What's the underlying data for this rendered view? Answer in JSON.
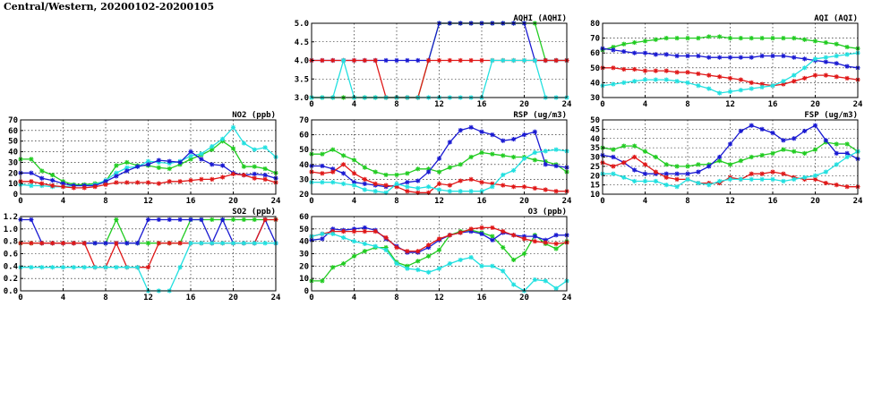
{
  "page": {
    "title": "Central/Western, 20200102-20200105"
  },
  "colors": {
    "green": "#22cc22",
    "blue": "#1a1ad2",
    "red": "#e01818",
    "cyan": "#22e0e0"
  },
  "chart_data": [
    {
      "id": "aqhi",
      "type": "line",
      "title": "AQHI (AQHI)",
      "x": [
        0,
        1,
        2,
        3,
        4,
        5,
        6,
        7,
        8,
        9,
        10,
        11,
        12,
        13,
        14,
        15,
        16,
        17,
        18,
        19,
        20,
        21,
        22,
        23,
        24
      ],
      "xticks": [
        0,
        4,
        8,
        12,
        16,
        20,
        24
      ],
      "ylim": [
        3.0,
        5.0
      ],
      "yticks": [
        3.0,
        3.5,
        4.0,
        4.5,
        5.0
      ],
      "ydecimals": 1,
      "series": [
        {
          "color": "green",
          "values": [
            3,
            3,
            3,
            3,
            3,
            3,
            3,
            3,
            3,
            3,
            3,
            4,
            5,
            5,
            5,
            5,
            5,
            5,
            5,
            5,
            5,
            5,
            4,
            4,
            4
          ]
        },
        {
          "color": "blue",
          "values": [
            4,
            4,
            4,
            4,
            4,
            4,
            4,
            4,
            4,
            4,
            4,
            4,
            5,
            5,
            5,
            5,
            5,
            5,
            5,
            5,
            5,
            4,
            4,
            4,
            4
          ]
        },
        {
          "color": "red",
          "values": [
            4,
            4,
            4,
            4,
            4,
            4,
            4,
            3,
            3,
            3,
            3,
            4,
            4,
            4,
            4,
            4,
            4,
            4,
            4,
            4,
            4,
            4,
            4,
            4,
            4
          ]
        },
        {
          "color": "cyan",
          "values": [
            3,
            3,
            3,
            4,
            3,
            3,
            3,
            3,
            3,
            3,
            3,
            3,
            3,
            3,
            3,
            3,
            3,
            4,
            4,
            4,
            4,
            4,
            3,
            3,
            3
          ]
        }
      ]
    },
    {
      "id": "aqi",
      "type": "line",
      "title": "AQI (AQI)",
      "x": [
        0,
        1,
        2,
        3,
        4,
        5,
        6,
        7,
        8,
        9,
        10,
        11,
        12,
        13,
        14,
        15,
        16,
        17,
        18,
        19,
        20,
        21,
        22,
        23,
        24
      ],
      "xticks": [
        0,
        4,
        8,
        12,
        16,
        20,
        24
      ],
      "ylim": [
        30,
        80
      ],
      "yticks": [
        30,
        40,
        50,
        60,
        70,
        80
      ],
      "ydecimals": 0,
      "series": [
        {
          "color": "green",
          "values": [
            62,
            64,
            66,
            67,
            68,
            69,
            70,
            70,
            70,
            70,
            71,
            71,
            70,
            70,
            70,
            70,
            70,
            70,
            70,
            69,
            68,
            67,
            66,
            64,
            63
          ]
        },
        {
          "color": "blue",
          "values": [
            63,
            62,
            61,
            60,
            60,
            59,
            59,
            58,
            58,
            58,
            57,
            57,
            57,
            57,
            57,
            58,
            58,
            58,
            57,
            56,
            55,
            54,
            53,
            51,
            50
          ]
        },
        {
          "color": "red",
          "values": [
            50,
            50,
            49,
            49,
            48,
            48,
            48,
            47,
            47,
            46,
            45,
            44,
            43,
            42,
            40,
            39,
            38,
            39,
            41,
            43,
            45,
            45,
            44,
            43,
            42
          ]
        },
        {
          "color": "cyan",
          "values": [
            38,
            39,
            40,
            41,
            42,
            42,
            42,
            41,
            40,
            38,
            36,
            33,
            34,
            35,
            36,
            37,
            38,
            41,
            45,
            50,
            56,
            57,
            58,
            59,
            60
          ]
        }
      ]
    },
    {
      "id": "no2",
      "type": "line",
      "title": "NO2 (ppb)",
      "x": [
        0,
        1,
        2,
        3,
        4,
        5,
        6,
        7,
        8,
        9,
        10,
        11,
        12,
        13,
        14,
        15,
        16,
        17,
        18,
        19,
        20,
        21,
        22,
        23,
        24
      ],
      "xticks": [
        0,
        4,
        8,
        12,
        16,
        20,
        24
      ],
      "ylim": [
        0,
        70
      ],
      "yticks": [
        0,
        10,
        20,
        30,
        40,
        50,
        60,
        70
      ],
      "ydecimals": 0,
      "series": [
        {
          "color": "green",
          "values": [
            33,
            33,
            22,
            18,
            12,
            9,
            9,
            10,
            12,
            27,
            30,
            27,
            27,
            25,
            24,
            28,
            33,
            37,
            42,
            50,
            43,
            26,
            26,
            24,
            20
          ]
        },
        {
          "color": "cyan",
          "values": [
            9,
            8,
            8,
            7,
            7,
            8,
            8,
            9,
            13,
            20,
            25,
            26,
            31,
            30,
            29,
            31,
            36,
            38,
            45,
            52,
            63,
            48,
            42,
            44,
            35
          ]
        },
        {
          "color": "blue",
          "values": [
            20,
            20,
            15,
            13,
            10,
            8,
            8,
            8,
            12,
            17,
            22,
            26,
            28,
            32,
            31,
            30,
            40,
            33,
            28,
            27,
            20,
            18,
            19,
            18,
            15
          ]
        },
        {
          "color": "red",
          "values": [
            12,
            12,
            10,
            8,
            7,
            6,
            6,
            7,
            9,
            11,
            11,
            11,
            11,
            10,
            12,
            12,
            13,
            14,
            14,
            16,
            19,
            18,
            15,
            14,
            11
          ]
        }
      ]
    },
    {
      "id": "rsp",
      "type": "line",
      "title": "RSP (ug/m3)",
      "x": [
        0,
        1,
        2,
        3,
        4,
        5,
        6,
        7,
        8,
        9,
        10,
        11,
        12,
        13,
        14,
        15,
        16,
        17,
        18,
        19,
        20,
        21,
        22,
        23,
        24
      ],
      "xticks": [
        0,
        4,
        8,
        12,
        16,
        20,
        24
      ],
      "ylim": [
        20,
        70
      ],
      "yticks": [
        20,
        30,
        40,
        50,
        60,
        70
      ],
      "ydecimals": 0,
      "series": [
        {
          "color": "green",
          "values": [
            47,
            47,
            50,
            46,
            43,
            38,
            35,
            33,
            33,
            34,
            37,
            37,
            35,
            38,
            40,
            45,
            48,
            47,
            46,
            45,
            45,
            43,
            42,
            40,
            35
          ]
        },
        {
          "color": "blue",
          "values": [
            39,
            39,
            37,
            34,
            28,
            27,
            26,
            25,
            26,
            28,
            29,
            35,
            44,
            55,
            63,
            65,
            62,
            60,
            56,
            57,
            60,
            62,
            40,
            39,
            38
          ]
        },
        {
          "color": "red",
          "values": [
            35,
            34,
            35,
            40,
            34,
            30,
            27,
            26,
            25,
            22,
            21,
            21,
            27,
            26,
            29,
            30,
            28,
            27,
            26,
            25,
            25,
            24,
            23,
            22,
            22
          ]
        },
        {
          "color": "cyan",
          "values": [
            28,
            28,
            28,
            27,
            26,
            23,
            22,
            21,
            27,
            25,
            24,
            25,
            23,
            22,
            22,
            22,
            22,
            25,
            33,
            36,
            44,
            48,
            49,
            50,
            49
          ]
        }
      ]
    },
    {
      "id": "fsp",
      "type": "line",
      "title": "FSP (ug/m3)",
      "x": [
        0,
        1,
        2,
        3,
        4,
        5,
        6,
        7,
        8,
        9,
        10,
        11,
        12,
        13,
        14,
        15,
        16,
        17,
        18,
        19,
        20,
        21,
        22,
        23,
        24
      ],
      "xticks": [
        0,
        4,
        8,
        12,
        16,
        20,
        24
      ],
      "ylim": [
        10,
        50
      ],
      "yticks": [
        10,
        15,
        20,
        25,
        30,
        35,
        40,
        45,
        50
      ],
      "ydecimals": 0,
      "series": [
        {
          "color": "green",
          "values": [
            35,
            34,
            36,
            36,
            33,
            30,
            26,
            25,
            25,
            26,
            26,
            28,
            26,
            28,
            30,
            31,
            32,
            34,
            33,
            32,
            34,
            38,
            37,
            37,
            33
          ]
        },
        {
          "color": "blue",
          "values": [
            31,
            30,
            27,
            23,
            21,
            21,
            21,
            21,
            21,
            22,
            25,
            30,
            37,
            44,
            47,
            45,
            43,
            39,
            40,
            44,
            47,
            39,
            32,
            32,
            29
          ]
        },
        {
          "color": "red",
          "values": [
            27,
            25,
            27,
            30,
            26,
            22,
            19,
            18,
            18,
            16,
            16,
            16,
            19,
            18,
            21,
            21,
            22,
            21,
            19,
            18,
            18,
            16,
            15,
            14,
            14
          ]
        },
        {
          "color": "cyan",
          "values": [
            21,
            21,
            19,
            17,
            17,
            17,
            15,
            14,
            18,
            16,
            15,
            17,
            18,
            18,
            18,
            18,
            18,
            17,
            18,
            19,
            20,
            22,
            26,
            30,
            33
          ]
        }
      ]
    },
    {
      "id": "so2",
      "type": "line",
      "title": "SO2 (ppb)",
      "x": [
        0,
        1,
        2,
        3,
        4,
        5,
        6,
        7,
        8,
        9,
        10,
        11,
        12,
        13,
        14,
        15,
        16,
        17,
        18,
        19,
        20,
        21,
        22,
        23,
        24
      ],
      "xticks": [
        0,
        4,
        8,
        12,
        16,
        20,
        24
      ],
      "ylim": [
        0.0,
        1.2
      ],
      "yticks": [
        0.0,
        0.2,
        0.4,
        0.6,
        0.8,
        1.0,
        1.2
      ],
      "ydecimals": 1,
      "series": [
        {
          "color": "green",
          "values": [
            0.77,
            0.77,
            0.77,
            0.77,
            0.77,
            0.77,
            0.77,
            0.77,
            0.77,
            1.15,
            0.77,
            0.77,
            0.77,
            0.77,
            0.77,
            0.77,
            1.15,
            1.15,
            1.15,
            1.15,
            1.15,
            1.15,
            1.15,
            1.15,
            1.15
          ]
        },
        {
          "color": "blue",
          "values": [
            1.15,
            1.15,
            0.77,
            0.77,
            0.77,
            0.77,
            0.77,
            0.77,
            0.77,
            0.77,
            0.77,
            0.77,
            1.15,
            1.15,
            1.15,
            1.15,
            1.15,
            1.15,
            0.77,
            1.15,
            0.77,
            0.77,
            0.77,
            1.15,
            0.77
          ]
        },
        {
          "color": "red",
          "values": [
            0.77,
            0.77,
            0.77,
            0.77,
            0.77,
            0.77,
            0.77,
            0.38,
            0.38,
            0.77,
            0.38,
            0.38,
            0.38,
            0.77,
            0.77,
            0.77,
            0.77,
            0.77,
            0.77,
            0.77,
            0.77,
            0.77,
            0.77,
            1.15,
            1.15
          ]
        },
        {
          "color": "cyan",
          "values": [
            0.38,
            0.38,
            0.38,
            0.38,
            0.38,
            0.38,
            0.38,
            0.38,
            0.38,
            0.38,
            0.38,
            0.38,
            0.0,
            0.0,
            0.0,
            0.38,
            0.77,
            0.77,
            0.77,
            0.77,
            0.77,
            0.77,
            0.77,
            0.77,
            0.77
          ]
        }
      ]
    },
    {
      "id": "o3",
      "type": "line",
      "title": "O3 (ppb)",
      "x": [
        0,
        1,
        2,
        3,
        4,
        5,
        6,
        7,
        8,
        9,
        10,
        11,
        12,
        13,
        14,
        15,
        16,
        17,
        18,
        19,
        20,
        21,
        22,
        23,
        24
      ],
      "xticks": [
        0,
        4,
        8,
        12,
        16,
        20,
        24
      ],
      "ylim": [
        0,
        60
      ],
      "yticks": [
        0,
        10,
        20,
        30,
        40,
        50,
        60
      ],
      "ydecimals": 0,
      "series": [
        {
          "color": "green",
          "values": [
            8,
            8,
            19,
            22,
            28,
            32,
            35,
            35,
            23,
            20,
            24,
            28,
            33,
            45,
            48,
            49,
            47,
            44,
            35,
            25,
            30,
            45,
            38,
            34,
            40
          ]
        },
        {
          "color": "blue",
          "values": [
            41,
            42,
            50,
            49,
            50,
            51,
            49,
            42,
            36,
            31,
            31,
            35,
            41,
            45,
            47,
            48,
            46,
            41,
            47,
            45,
            44,
            44,
            41,
            45,
            45
          ]
        },
        {
          "color": "red",
          "values": [
            44,
            46,
            48,
            48,
            48,
            48,
            48,
            43,
            35,
            32,
            32,
            37,
            42,
            45,
            47,
            50,
            51,
            51,
            48,
            45,
            42,
            40,
            39,
            38,
            39
          ]
        },
        {
          "color": "cyan",
          "values": [
            44,
            46,
            46,
            43,
            40,
            38,
            36,
            33,
            22,
            18,
            17,
            15,
            18,
            22,
            25,
            27,
            20,
            20,
            16,
            5,
            0,
            9,
            8,
            2,
            8
          ]
        }
      ]
    }
  ]
}
